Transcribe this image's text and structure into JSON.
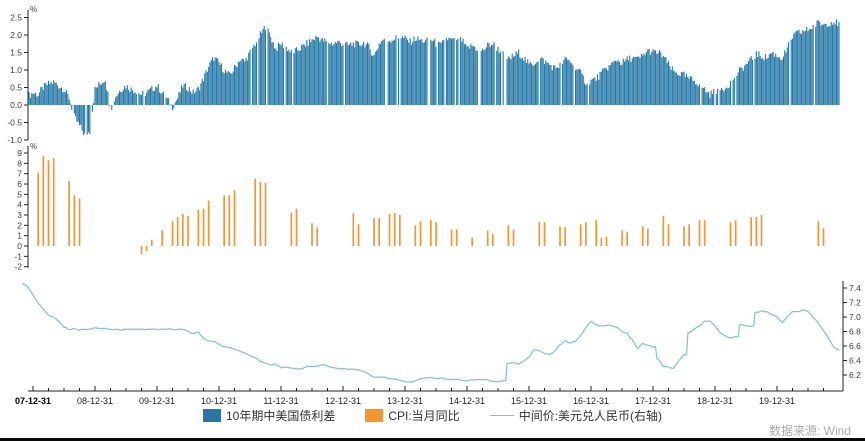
{
  "source_note": "数据来源: Wind",
  "legend": {
    "items": [
      {
        "label": "10年期中美国债利差",
        "color": "#2679a7",
        "marker": "square"
      },
      {
        "label": "CPI:当月同比",
        "color": "#f5952f",
        "marker": "square"
      },
      {
        "label": "中间价:美元兑人民币(右轴)",
        "color": "#7cc5c7",
        "marker": "line"
      }
    ]
  },
  "x_axis": {
    "labels": [
      "07-12-31",
      "08-12-31",
      "09-12-31",
      "10-12-31",
      "11-12-31",
      "12-12-31",
      "13-12-31",
      "14-12-31",
      "15-12-31",
      "16-12-31",
      "17-12-31",
      "18-12-31",
      "19-12-31"
    ]
  },
  "chart_data": [
    {
      "type": "bar",
      "name": "10年期中美国债利差",
      "unit": "%",
      "axis": "left-top",
      "color": "#2679a7",
      "ylim": [
        -1.0,
        2.5
      ],
      "yticks": [
        "2.5",
        "2.0",
        "1.5",
        "1.0",
        "0.5",
        "0.0",
        "-0.5",
        "-1.0"
      ],
      "freq": "monthly",
      "start": "2007-11",
      "values": [
        0.25,
        0.35,
        0.3,
        0.5,
        0.6,
        0.65,
        0.55,
        0.45,
        0.2,
        -0.35,
        -0.6,
        -0.85,
        -0.75,
        0.45,
        0.6,
        0.75,
        -0.15,
        0.25,
        0.45,
        0.55,
        0.45,
        0.4,
        0.3,
        0.35,
        0.45,
        0.55,
        0.35,
        0.15,
        -0.05,
        0.2,
        0.55,
        0.5,
        0.35,
        0.45,
        0.75,
        1.1,
        1.35,
        1.2,
        1.0,
        0.85,
        1.05,
        1.3,
        1.25,
        1.5,
        1.75,
        2.0,
        2.25,
        1.95,
        1.6,
        1.75,
        1.65,
        1.5,
        1.55,
        1.65,
        1.75,
        1.85,
        1.95,
        1.85,
        1.8,
        1.75,
        1.8,
        1.75,
        1.7,
        1.75,
        1.72,
        1.78,
        1.65,
        1.4,
        1.75,
        1.9,
        1.85,
        1.9,
        1.95,
        1.9,
        1.8,
        1.9,
        1.85,
        1.82,
        1.88,
        1.75,
        1.7,
        1.9,
        1.85,
        1.8,
        1.85,
        1.6,
        1.7,
        1.6,
        1.55,
        1.7,
        1.75,
        1.6,
        1.45,
        1.3,
        1.4,
        1.5,
        1.35,
        1.15,
        1.2,
        1.35,
        1.25,
        1.15,
        1.05,
        1.15,
        1.3,
        1.25,
        1.1,
        0.9,
        0.65,
        0.7,
        0.75,
        0.9,
        1.05,
        1.15,
        1.3,
        1.2,
        1.3,
        1.35,
        1.3,
        1.4,
        1.55,
        1.5,
        1.5,
        1.4,
        1.15,
        0.95,
        0.9,
        0.85,
        0.75,
        0.7,
        0.6,
        0.45,
        0.3,
        0.4,
        0.45,
        0.5,
        0.65,
        0.85,
        1.0,
        1.15,
        1.3,
        1.45,
        1.4,
        1.35,
        1.5,
        1.4,
        1.35,
        1.6,
        1.95,
        2.05,
        2.1,
        2.15,
        2.25,
        2.35,
        2.3,
        2.35,
        2.4,
        2.3
      ]
    },
    {
      "type": "bar",
      "name": "CPI:当月同比",
      "unit": "%",
      "axis": "left-middle",
      "color": "#f5952f",
      "ylim": [
        -2,
        9
      ],
      "yticks": [
        "9",
        "8",
        "7",
        "6",
        "5",
        "4",
        "3",
        "2",
        "1",
        "0",
        "-1",
        "-2"
      ],
      "freq": "monthly-sparse",
      "points": [
        [
          "2008-01",
          7.1
        ],
        [
          "2008-02",
          8.7
        ],
        [
          "2008-03",
          8.3
        ],
        [
          "2008-04",
          8.5
        ],
        [
          "2008-07",
          6.3
        ],
        [
          "2008-08",
          4.9
        ],
        [
          "2008-09",
          4.6
        ],
        [
          "2009-09",
          -0.8
        ],
        [
          "2009-10",
          -0.5
        ],
        [
          "2009-11",
          0.6
        ],
        [
          "2010-01",
          1.5
        ],
        [
          "2010-03",
          2.4
        ],
        [
          "2010-04",
          2.8
        ],
        [
          "2010-05",
          3.1
        ],
        [
          "2010-06",
          2.9
        ],
        [
          "2010-08",
          3.5
        ],
        [
          "2010-09",
          3.6
        ],
        [
          "2010-10",
          4.4
        ],
        [
          "2011-01",
          4.9
        ],
        [
          "2011-02",
          4.9
        ],
        [
          "2011-03",
          5.4
        ],
        [
          "2011-07",
          6.5
        ],
        [
          "2011-08",
          6.2
        ],
        [
          "2011-09",
          6.1
        ],
        [
          "2012-02",
          3.2
        ],
        [
          "2012-03",
          3.6
        ],
        [
          "2012-06",
          2.2
        ],
        [
          "2012-07",
          1.8
        ],
        [
          "2013-02",
          3.2
        ],
        [
          "2013-03",
          2.1
        ],
        [
          "2013-06",
          2.7
        ],
        [
          "2013-07",
          2.7
        ],
        [
          "2013-09",
          3.1
        ],
        [
          "2013-10",
          3.2
        ],
        [
          "2013-11",
          3.0
        ],
        [
          "2014-02",
          2.0
        ],
        [
          "2014-03",
          2.4
        ],
        [
          "2014-05",
          2.5
        ],
        [
          "2014-06",
          2.3
        ],
        [
          "2014-09",
          1.6
        ],
        [
          "2014-10",
          1.6
        ],
        [
          "2015-01",
          0.8
        ],
        [
          "2015-04",
          1.5
        ],
        [
          "2015-05",
          1.2
        ],
        [
          "2015-08",
          2.0
        ],
        [
          "2015-09",
          1.6
        ],
        [
          "2016-02",
          2.3
        ],
        [
          "2016-03",
          2.3
        ],
        [
          "2016-06",
          1.9
        ],
        [
          "2016-07",
          1.8
        ],
        [
          "2016-10",
          2.1
        ],
        [
          "2016-11",
          2.3
        ],
        [
          "2017-01",
          2.5
        ],
        [
          "2017-02",
          0.8
        ],
        [
          "2017-03",
          0.9
        ],
        [
          "2017-06",
          1.5
        ],
        [
          "2017-07",
          1.4
        ],
        [
          "2017-10",
          1.9
        ],
        [
          "2017-11",
          1.7
        ],
        [
          "2018-02",
          2.9
        ],
        [
          "2018-03",
          2.1
        ],
        [
          "2018-06",
          1.9
        ],
        [
          "2018-07",
          2.1
        ],
        [
          "2018-09",
          2.5
        ],
        [
          "2018-10",
          2.5
        ],
        [
          "2019-03",
          2.3
        ],
        [
          "2019-04",
          2.5
        ],
        [
          "2019-07",
          2.8
        ],
        [
          "2019-08",
          2.8
        ],
        [
          "2019-09",
          3.0
        ],
        [
          "2020-08",
          2.4
        ],
        [
          "2020-09",
          1.7
        ]
      ]
    },
    {
      "type": "line",
      "name": "中间价:美元兑人民币(右轴)",
      "axis": "right-bottom",
      "color": "#7cc5c7",
      "ylim": [
        6.2,
        7.4
      ],
      "yticks": [
        "7.4",
        "7.2",
        "7.0",
        "6.8",
        "6.6",
        "6.4",
        "6.2"
      ],
      "freq": "monthly",
      "start": "2007-10",
      "values": [
        7.47,
        7.42,
        7.3,
        7.19,
        7.11,
        7.02,
        7.0,
        6.94,
        6.86,
        6.83,
        6.84,
        6.82,
        6.83,
        6.83,
        6.85,
        6.84,
        6.84,
        6.83,
        6.83,
        6.82,
        6.83,
        6.83,
        6.83,
        6.83,
        6.83,
        6.83,
        6.83,
        6.83,
        6.83,
        6.83,
        6.83,
        6.83,
        6.8,
        6.77,
        6.79,
        6.71,
        6.67,
        6.66,
        6.62,
        6.59,
        6.58,
        6.56,
        6.53,
        6.5,
        6.47,
        6.44,
        6.39,
        6.36,
        6.34,
        6.35,
        6.3,
        6.31,
        6.3,
        6.29,
        6.28,
        6.32,
        6.32,
        6.32,
        6.34,
        6.33,
        6.3,
        6.29,
        6.29,
        6.28,
        6.28,
        6.27,
        6.25,
        6.21,
        6.17,
        6.17,
        6.17,
        6.15,
        6.14,
        6.13,
        6.11,
        6.1,
        6.12,
        6.15,
        6.16,
        6.17,
        6.15,
        6.16,
        6.14,
        6.14,
        6.14,
        6.13,
        6.12,
        6.13,
        6.14,
        6.14,
        6.13,
        6.11,
        6.11,
        6.12,
        6.36,
        6.37,
        6.35,
        6.39,
        6.45,
        6.55,
        6.54,
        6.5,
        6.48,
        6.53,
        6.62,
        6.67,
        6.64,
        6.67,
        6.74,
        6.86,
        6.94,
        6.89,
        6.87,
        6.89,
        6.88,
        6.86,
        6.8,
        6.77,
        6.68,
        6.57,
        6.63,
        6.61,
        6.59,
        6.42,
        6.32,
        6.31,
        6.29,
        6.4,
        6.48,
        6.78,
        6.84,
        6.87,
        6.94,
        6.95,
        6.88,
        6.78,
        6.74,
        6.71,
        6.73,
        6.9,
        6.88,
        6.87,
        7.06,
        7.08,
        7.07,
        7.03,
        7.0,
        6.92,
        7.0,
        7.08,
        7.07,
        7.1,
        7.08,
        7.0,
        6.91,
        6.81,
        6.7,
        6.58,
        6.54
      ]
    }
  ]
}
